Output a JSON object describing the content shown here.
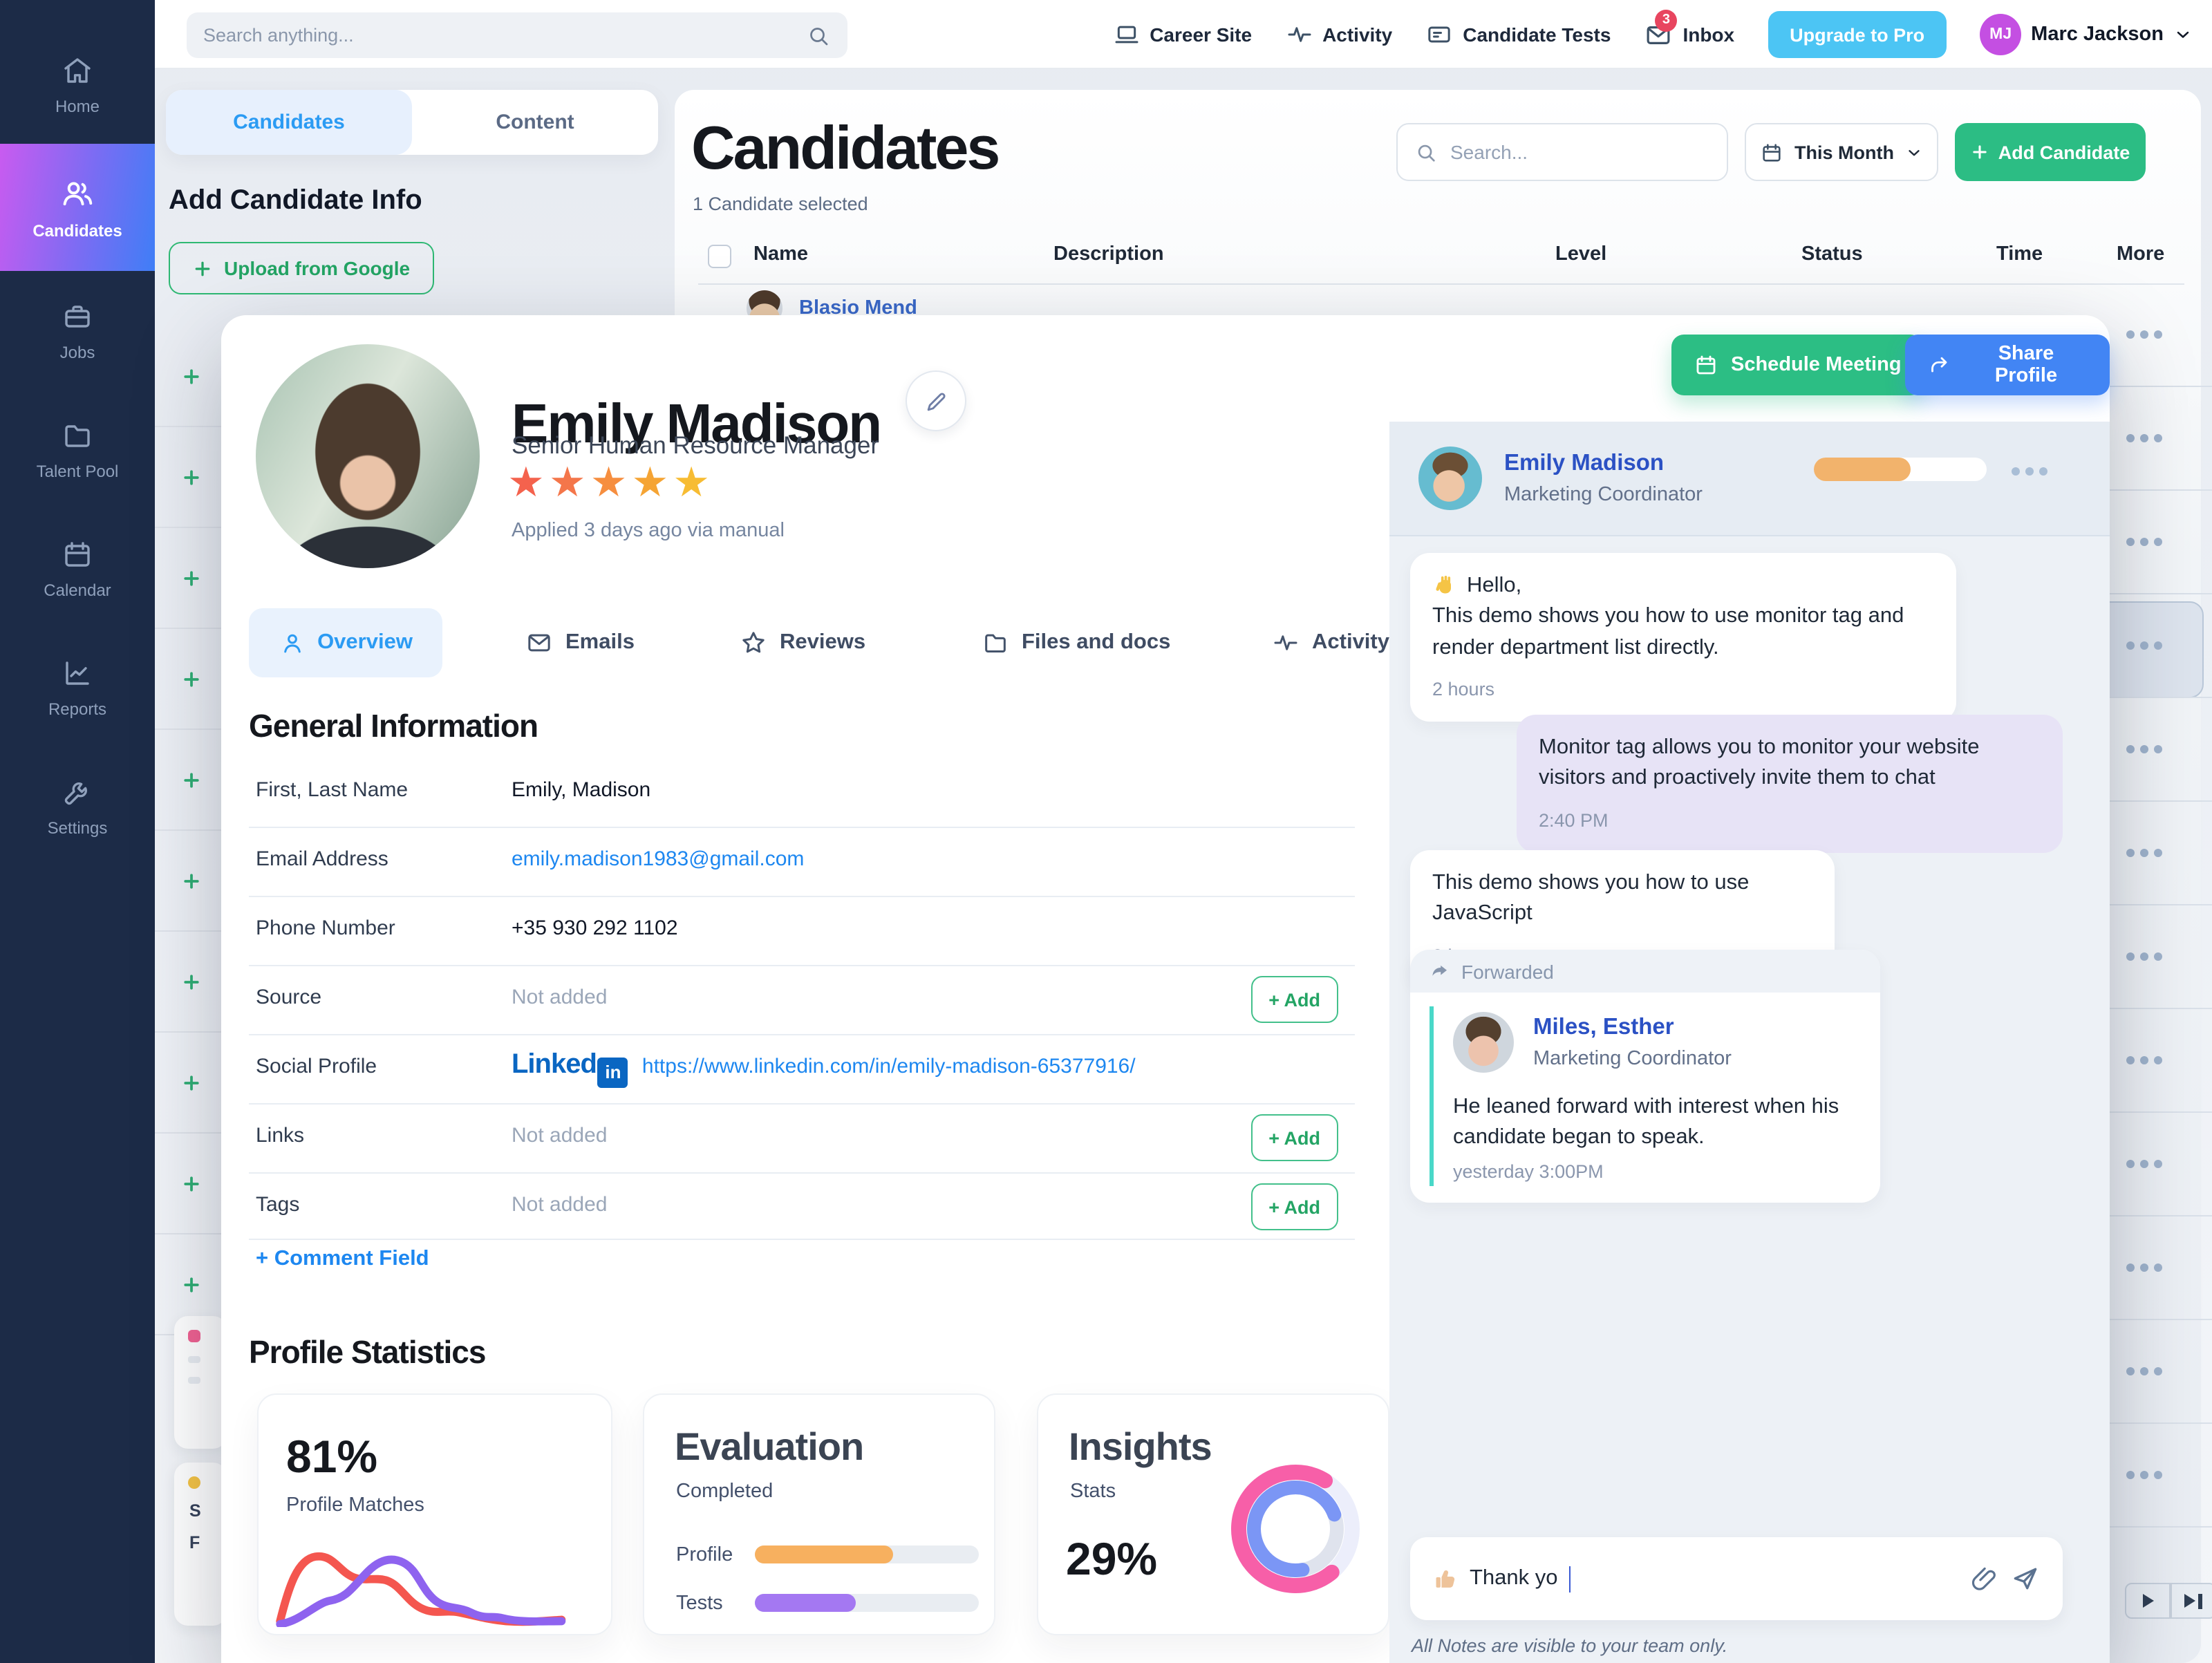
{
  "topbar": {
    "search_placeholder": "Search anything...",
    "items": [
      {
        "label": "Career Site"
      },
      {
        "label": "Activity"
      },
      {
        "label": "Candidate Tests"
      },
      {
        "label": "Inbox",
        "badge": "3"
      }
    ],
    "upgrade_label": "Upgrade to Pro",
    "user": {
      "initials": "MJ",
      "name": "Marc Jackson"
    }
  },
  "sidebar": {
    "items": [
      {
        "label": "Home"
      },
      {
        "label": "Candidates"
      },
      {
        "label": "Jobs"
      },
      {
        "label": "Talent Pool"
      },
      {
        "label": "Calendar"
      },
      {
        "label": "Reports"
      },
      {
        "label": "Settings"
      }
    ]
  },
  "left_panel": {
    "tabs": [
      {
        "label": "Candidates"
      },
      {
        "label": "Content"
      }
    ],
    "heading": "Add Candidate Info",
    "upload_button": "Upload from Google",
    "hint_letters": [
      "S",
      "F"
    ]
  },
  "candidates_page": {
    "title": "Candidates",
    "selected_info": "1 Candidate selected",
    "search_placeholder": "Search...",
    "filter_label": "This Month",
    "add_button_label": "Add Candidate",
    "columns": [
      "Name",
      "Description",
      "Level",
      "Status",
      "Time",
      "More"
    ],
    "partial_row_name": "Blasio Mend"
  },
  "background": {
    "more_rows": 12,
    "selected_row_index": 3,
    "plus_rows": 10
  },
  "profile": {
    "name": "Emily Madison",
    "title": "Senior Human Resource Manager",
    "applied": "Applied 3 days ago via manual",
    "rating": {
      "char": "★",
      "colors": [
        "#f4624d",
        "#f4764a",
        "#f68e3f",
        "#f5a434",
        "#f7bc33"
      ]
    },
    "actions": {
      "schedule": "Schedule Meeting",
      "share": "Share Profile"
    },
    "tabs": [
      {
        "label": "Overview"
      },
      {
        "label": "Emails"
      },
      {
        "label": "Reviews"
      },
      {
        "label": "Files and docs"
      },
      {
        "label": "Activity"
      }
    ],
    "general": {
      "heading": "General Information",
      "add_label": "+ Add",
      "rows": [
        {
          "label": "First, Last Name",
          "value": "Emily, Madison"
        },
        {
          "label": "Email Address",
          "value": "emily.madison1983@gmail.com"
        },
        {
          "label": "Phone Number",
          "value": "+35 930 292 1102"
        },
        {
          "label": "Source",
          "value": "Not added"
        },
        {
          "label": "Social Profile",
          "value": "https://www.linkedin.com/in/emily-madison-65377916/"
        },
        {
          "label": "Links",
          "value": "Not added"
        },
        {
          "label": "Tags",
          "value": "Not added"
        }
      ],
      "linkedin": {
        "word": "Linked",
        "badge": "in"
      },
      "comment_field": "+ Comment Field"
    },
    "stats": {
      "heading": "Profile Statistics",
      "match_card": {
        "value": "81%",
        "label": "Profile Matches"
      },
      "evaluation_card": {
        "title": "Evaluation",
        "subtitle": "Completed",
        "rows": [
          {
            "label": "Profile",
            "percent": 62,
            "color": "#f7b05f"
          },
          {
            "label": "Tests",
            "percent": 45,
            "color": "#a478f2"
          }
        ]
      },
      "insights_card": {
        "title": "Insights",
        "subtitle": "Stats",
        "value": "29%"
      }
    }
  },
  "chat": {
    "header": {
      "name": "Emily Madison",
      "title": "Marketing Coordinator",
      "progress_percent": 56
    },
    "messages": [
      {
        "line1": "Hello,",
        "line2": "This demo shows you how to use monitor tag and render department list directly.",
        "time": "2 hours"
      },
      {
        "text": "Monitor tag allows you to monitor your website visitors and proactively invite them to chat",
        "time": "2:40 PM"
      },
      {
        "text": "This demo shows you how to use JavaScript",
        "time": "2 hours"
      },
      {
        "label": "Forwarded",
        "name": "Miles, Esther",
        "title": "Marketing Coordinator",
        "text": "He leaned forward with interest when his candidate began to speak.",
        "time": "yesterday 3:00PM"
      }
    ],
    "input": {
      "value": "Thank yo"
    },
    "note": "All Notes are visible to your team only."
  }
}
